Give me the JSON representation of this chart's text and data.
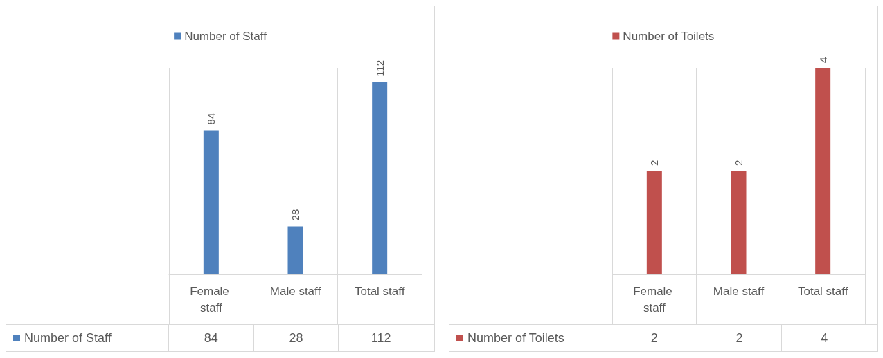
{
  "chart_data": [
    {
      "type": "bar",
      "categories": [
        "Female staff",
        "Male staff",
        "Total staff"
      ],
      "legend": "top",
      "grid": "x",
      "data_labels": true,
      "series": [
        {
          "name": "Number of Staff",
          "color": "#4f81bd",
          "values": [
            84,
            28,
            112
          ],
          "value_labels": [
            "84",
            "28",
            "112"
          ]
        }
      ]
    },
    {
      "type": "bar",
      "categories": [
        "Female staff",
        "Male staff",
        "Total staff"
      ],
      "legend": "top",
      "grid": "x",
      "data_labels": true,
      "series": [
        {
          "name": "Number of Toilets",
          "color": "#c0504d",
          "values": [
            2,
            2,
            4
          ],
          "value_labels": [
            "2",
            "2",
            "4"
          ]
        }
      ]
    }
  ]
}
